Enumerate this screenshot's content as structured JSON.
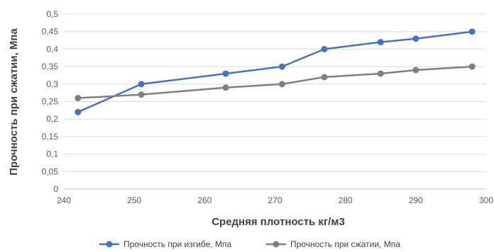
{
  "chart_data": {
    "type": "line",
    "xlabel": "Средняя плотность кг/м3",
    "ylabel": "Прочность при сжатии, Мпа",
    "xlim": [
      240,
      300
    ],
    "ylim": [
      0,
      0.5
    ],
    "x_ticks": [
      "240",
      "250",
      "260",
      "270",
      "280",
      "290",
      "300"
    ],
    "y_ticks": [
      "0",
      "0,05",
      "0,1",
      "0,15",
      "0,2",
      "0,25",
      "0,3",
      "0,35",
      "0,4",
      "0,45",
      "0,5"
    ],
    "grid": "horizontal",
    "legend_position": "bottom",
    "series": [
      {
        "name": "Прочность при изгибе, Мпа",
        "color": "#4472c4",
        "x": [
          242,
          251,
          263,
          271,
          277,
          285,
          290,
          298
        ],
        "y": [
          0.22,
          0.3,
          0.33,
          0.35,
          0.4,
          0.42,
          0.43,
          0.45
        ]
      },
      {
        "name": "Прочность при сжатии, Мпа",
        "color": "#7f7f7f",
        "x": [
          242,
          251,
          263,
          271,
          277,
          285,
          290,
          298
        ],
        "y": [
          0.26,
          0.27,
          0.29,
          0.3,
          0.32,
          0.33,
          0.34,
          0.35
        ]
      }
    ]
  }
}
